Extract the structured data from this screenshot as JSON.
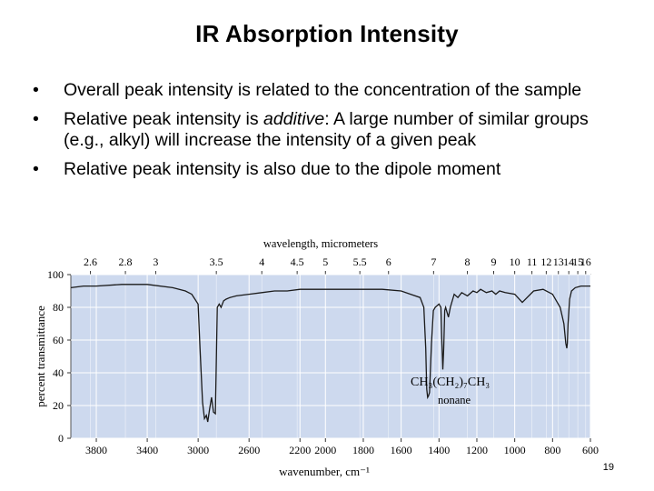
{
  "slide": {
    "title": "IR Absorption Intensity",
    "page_number": "19",
    "bullets": [
      {
        "bullet": "•",
        "before": "Overall peak intensity is related to the concentration of the sample",
        "em": "",
        "after": ""
      },
      {
        "bullet": "•",
        "before": "Relative peak intensity is ",
        "em": "additive",
        "after": ": A large number of similar groups (e.g., alkyl) will increase the intensity of a given peak"
      },
      {
        "bullet": "•",
        "before": "Relative peak intensity is also due to the dipole moment",
        "em": "",
        "after": ""
      }
    ]
  },
  "chart_data": {
    "type": "line",
    "title": "",
    "xlabel": "wavenumber, cm⁻¹",
    "x2label": "wavelength, micrometers",
    "ylabel": "percent transmittance",
    "compound_formula": "CH₃(CH₂)₇CH₃",
    "compound_name": "nonane",
    "xlim": [
      4000,
      600
    ],
    "x_reversed": true,
    "ylim": [
      0,
      100
    ],
    "grid": true,
    "plot_background": "#cdd9ee",
    "grid_color": "#ffffff",
    "line_color": "#1a1a1a",
    "y_ticks": [
      0,
      20,
      40,
      60,
      80,
      100
    ],
    "x_ticks": [
      3800,
      3400,
      3000,
      2600,
      2200,
      2000,
      1800,
      1600,
      1400,
      1200,
      1000,
      800,
      600
    ],
    "x2_ticks": [
      {
        "label": "2.6",
        "um": 2.6
      },
      {
        "label": "2.8",
        "um": 2.8
      },
      {
        "label": "3",
        "um": 3
      },
      {
        "label": "3.5",
        "um": 3.5
      },
      {
        "label": "4",
        "um": 4
      },
      {
        "label": "4.5",
        "um": 4.5
      },
      {
        "label": "5",
        "um": 5
      },
      {
        "label": "5.5",
        "um": 5.5
      },
      {
        "label": "6",
        "um": 6
      },
      {
        "label": "7",
        "um": 7
      },
      {
        "label": "8",
        "um": 8
      },
      {
        "label": "9",
        "um": 9
      },
      {
        "label": "10",
        "um": 10
      },
      {
        "label": "11",
        "um": 11
      },
      {
        "label": "12",
        "um": 12
      },
      {
        "label": "13",
        "um": 13
      },
      {
        "label": "14",
        "um": 14
      },
      {
        "label": "15",
        "um": 15
      },
      {
        "label": "16",
        "um": 16
      }
    ],
    "series": [
      {
        "x": [
          4000,
          3900,
          3800,
          3600,
          3400,
          3200,
          3100,
          3050,
          3000,
          2985,
          2965,
          2950,
          2935,
          2925,
          2910,
          2895,
          2880,
          2865,
          2850,
          2835,
          2820,
          2800,
          2780,
          2750,
          2700,
          2600,
          2500,
          2400,
          2300,
          2200,
          2100,
          2000,
          1900,
          1800,
          1700,
          1600,
          1550,
          1500,
          1480,
          1470,
          1465,
          1460,
          1455,
          1450,
          1440,
          1430,
          1420,
          1400,
          1390,
          1385,
          1380,
          1375,
          1370,
          1365,
          1360,
          1350,
          1340,
          1320,
          1300,
          1280,
          1250,
          1220,
          1200,
          1180,
          1150,
          1120,
          1100,
          1080,
          1050,
          1000,
          960,
          900,
          850,
          800,
          780,
          760,
          740,
          730,
          725,
          722,
          718,
          710,
          700,
          680,
          650,
          600
        ],
        "y": [
          92,
          93,
          93,
          94,
          94,
          92,
          90,
          88,
          82,
          55,
          22,
          12,
          14,
          10,
          18,
          25,
          16,
          15,
          80,
          82,
          80,
          84,
          85,
          86,
          87,
          88,
          89,
          90,
          90,
          91,
          91,
          91,
          91,
          91,
          91,
          90,
          88,
          86,
          80,
          55,
          30,
          25,
          26,
          28,
          58,
          78,
          80,
          82,
          80,
          60,
          42,
          55,
          78,
          80,
          78,
          74,
          80,
          88,
          86,
          89,
          87,
          90,
          89,
          91,
          89,
          90,
          88,
          90,
          89,
          88,
          83,
          90,
          91,
          88,
          84,
          80,
          70,
          58,
          55,
          58,
          70,
          85,
          90,
          92,
          93,
          93
        ]
      }
    ]
  }
}
